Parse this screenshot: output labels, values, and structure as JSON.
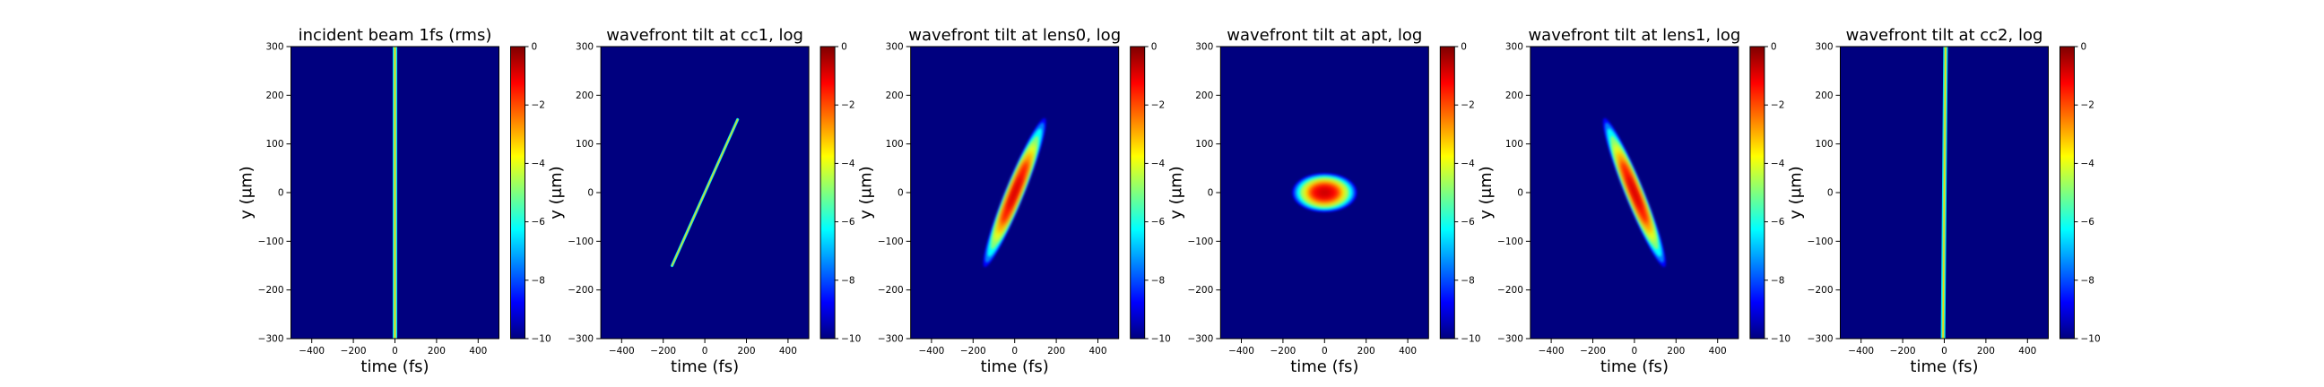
{
  "colors": {
    "background": "#00007f",
    "colormap": [
      "#00007f",
      "#0000ff",
      "#007fff",
      "#00ffff",
      "#7fff7f",
      "#ffff00",
      "#ff7f00",
      "#ff0000",
      "#7f0000"
    ]
  },
  "chart_data": [
    {
      "type": "heatmap",
      "title": "incident beam 1fs (rms)",
      "xlabel": "time (fs)",
      "ylabel": "y (μm)",
      "xlim": [
        -500,
        500
      ],
      "ylim": [
        -300,
        300
      ],
      "xticks": [
        "−400",
        "−200",
        "0",
        "200",
        "400"
      ],
      "yticks": [
        "300",
        "200",
        "100",
        "0",
        "−100",
        "−200",
        "−300"
      ],
      "colorbar": {
        "range": [
          -10,
          0
        ],
        "ticks": [
          "0",
          "−2",
          "−4",
          "−6",
          "−8",
          "−10"
        ]
      },
      "feature": {
        "shape": "line",
        "center": [
          0,
          0
        ],
        "tilt_fs_per_um": 0.0,
        "length_um": 600,
        "width_fs": 10
      }
    },
    {
      "type": "heatmap",
      "title": "wavefront tilt at cc1, log",
      "xlabel": "time (fs)",
      "ylabel": "y (μm)",
      "xlim": [
        -500,
        500
      ],
      "ylim": [
        -300,
        300
      ],
      "xticks": [
        "−400",
        "−200",
        "0",
        "200",
        "400"
      ],
      "yticks": [
        "300",
        "200",
        "100",
        "0",
        "−100",
        "−200",
        "−300"
      ],
      "colorbar": {
        "range": [
          -10,
          0
        ],
        "ticks": [
          "0",
          "−2",
          "−4",
          "−6",
          "−8",
          "−10"
        ]
      },
      "feature": {
        "shape": "line",
        "center": [
          0,
          0
        ],
        "tilt_fs_per_um": 1.05,
        "length_um": 300,
        "width_fs": 6
      }
    },
    {
      "type": "heatmap",
      "title": "wavefront tilt at lens0, log",
      "xlabel": "time (fs)",
      "ylabel": "y (μm)",
      "xlim": [
        -500,
        500
      ],
      "ylim": [
        -300,
        300
      ],
      "xticks": [
        "−400",
        "−200",
        "0",
        "200",
        "400"
      ],
      "yticks": [
        "300",
        "200",
        "100",
        "0",
        "−100",
        "−200",
        "−300"
      ],
      "colorbar": {
        "range": [
          -10,
          0
        ],
        "ticks": [
          "0",
          "−2",
          "−4",
          "−6",
          "−8",
          "−10"
        ]
      },
      "feature": {
        "shape": "ellipse",
        "center": [
          0,
          0
        ],
        "tilt_fs_per_um": 0.95,
        "length_um": 330,
        "width_fs": 90
      }
    },
    {
      "type": "heatmap",
      "title": "wavefront tilt at apt, log",
      "xlabel": "time (fs)",
      "ylabel": "y (μm)",
      "xlim": [
        -500,
        500
      ],
      "ylim": [
        -300,
        300
      ],
      "xticks": [
        "−400",
        "−200",
        "0",
        "200",
        "400"
      ],
      "yticks": [
        "300",
        "200",
        "100",
        "0",
        "−100",
        "−200",
        "−300"
      ],
      "colorbar": {
        "range": [
          -10,
          0
        ],
        "ticks": [
          "0",
          "−2",
          "−4",
          "−6",
          "−8",
          "−10"
        ]
      },
      "feature": {
        "shape": "ellipse",
        "center": [
          0,
          0
        ],
        "tilt_fs_per_um": 0.0,
        "length_um": 80,
        "width_fs": 310
      }
    },
    {
      "type": "heatmap",
      "title": "wavefront tilt at lens1, log",
      "xlabel": "time (fs)",
      "ylabel": "y (μm)",
      "xlim": [
        -500,
        500
      ],
      "ylim": [
        -300,
        300
      ],
      "xticks": [
        "−400",
        "−200",
        "0",
        "200",
        "400"
      ],
      "yticks": [
        "300",
        "200",
        "100",
        "0",
        "−100",
        "−200",
        "−300"
      ],
      "colorbar": {
        "range": [
          -10,
          0
        ],
        "ticks": [
          "0",
          "−2",
          "−4",
          "−6",
          "−8",
          "−10"
        ]
      },
      "feature": {
        "shape": "ellipse",
        "center": [
          0,
          0
        ],
        "tilt_fs_per_um": -0.95,
        "length_um": 330,
        "width_fs": 90
      }
    },
    {
      "type": "heatmap",
      "title": "wavefront tilt at cc2, log",
      "xlabel": "time (fs)",
      "ylabel": "y (μm)",
      "xlim": [
        -500,
        500
      ],
      "ylim": [
        -300,
        300
      ],
      "xticks": [
        "−400",
        "−200",
        "0",
        "200",
        "400"
      ],
      "yticks": [
        "300",
        "200",
        "100",
        "0",
        "−100",
        "−200",
        "−300"
      ],
      "colorbar": {
        "range": [
          -10,
          0
        ],
        "ticks": [
          "0",
          "−2",
          "−4",
          "−6",
          "−8",
          "−10"
        ]
      },
      "feature": {
        "shape": "line",
        "center": [
          0,
          0
        ],
        "tilt_fs_per_um": 0.02,
        "length_um": 600,
        "width_fs": 10
      }
    }
  ]
}
